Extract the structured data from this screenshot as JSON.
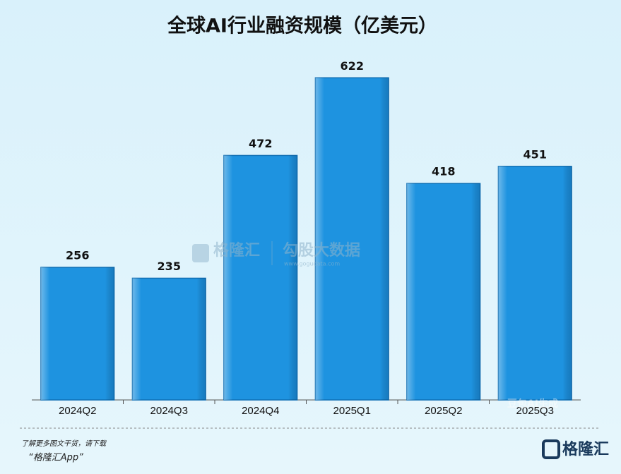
{
  "chart_data": {
    "type": "bar",
    "title": "全球AI行业融资规模（亿美元）",
    "categories": [
      "2024Q2",
      "2024Q3",
      "2024Q4",
      "2025Q1",
      "2025Q2",
      "2025Q3"
    ],
    "values": [
      256,
      235,
      472,
      622,
      418,
      451
    ],
    "color": "#1e93e0",
    "ylim": [
      0,
      700
    ],
    "grid": false
  },
  "watermark": {
    "brand": "格隆汇",
    "partner": "勾股大数据",
    "url": "www.gogudata.com",
    "generator": "豆包AI生成"
  },
  "footer": {
    "prompt": "了解更多图文干货，请下载",
    "app": "“格隆汇App”",
    "logo": "格隆汇"
  }
}
